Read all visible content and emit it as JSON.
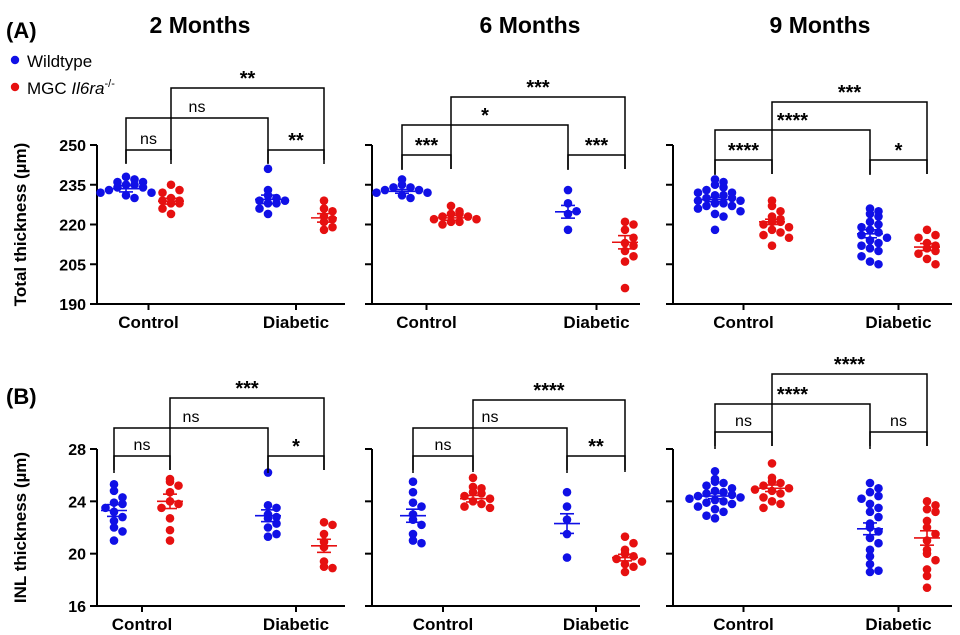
{
  "panel_labels": [
    "(A)",
    "(B)"
  ],
  "legend": [
    {
      "label": "Wildtype",
      "color": "#1010e6"
    },
    {
      "label": "MGC ",
      "italic": "Il6ra",
      "sup": "-/-",
      "color": "#e61010"
    }
  ],
  "colors": {
    "wildtype": "#1010e6",
    "mgc": "#e61010",
    "axis": "#000000"
  },
  "chart_data": [
    {
      "type": "scatter",
      "title": "2 Months",
      "ylabel": "Total thickness (µm)",
      "ylim": [
        190,
        250
      ],
      "yticks": [
        "190",
        "205",
        "220",
        "235",
        "250"
      ],
      "categories": [
        "Control",
        "Diabetic"
      ],
      "series": [
        {
          "name": "Wildtype",
          "group": "Control",
          "mean": 233.5,
          "sem": 1.2,
          "values": [
            238,
            236,
            237,
            235,
            234,
            232,
            231,
            230,
            233,
            232,
            234,
            235,
            236
          ]
        },
        {
          "name": "MGC Il6ra-/-",
          "group": "Control",
          "mean": 228.8,
          "sem": 1.1,
          "values": [
            235,
            233,
            232,
            230,
            229,
            228,
            226,
            224,
            228,
            229
          ]
        },
        {
          "name": "Wildtype",
          "group": "Diabetic",
          "mean": 229.5,
          "sem": 1.6,
          "values": [
            241,
            233,
            231,
            229,
            228,
            226,
            224,
            229,
            228,
            230
          ]
        },
        {
          "name": "MGC Il6ra-/-",
          "group": "Diabetic",
          "mean": 222.5,
          "sem": 1.6,
          "values": [
            229,
            226,
            225,
            223,
            222,
            219,
            218,
            221
          ]
        }
      ],
      "comparisons": [
        {
          "from": 0,
          "to": 1,
          "label": "ns",
          "level": 1
        },
        {
          "from": 2,
          "to": 3,
          "label": "**",
          "level": 1
        },
        {
          "from": 0,
          "to": 2,
          "label": "ns",
          "level": 2
        },
        {
          "from": 1,
          "to": 3,
          "label": "**",
          "level": 3
        }
      ]
    },
    {
      "type": "scatter",
      "title": "6 Months",
      "ylabel": "",
      "ylim": [
        190,
        250
      ],
      "yticks": [],
      "categories": [
        "Control",
        "Diabetic"
      ],
      "series": [
        {
          "name": "Wildtype",
          "group": "Control",
          "mean": 232.5,
          "sem": 0.7,
          "values": [
            237,
            235,
            234,
            233,
            232,
            231,
            230,
            232,
            233,
            234
          ]
        },
        {
          "name": "MGC Il6ra-/-",
          "group": "Control",
          "mean": 222.5,
          "sem": 0.9,
          "values": [
            227,
            225,
            224,
            223,
            222,
            221,
            220,
            222,
            223,
            221,
            224
          ]
        },
        {
          "name": "Wildtype",
          "group": "Diabetic",
          "mean": 224.8,
          "sem": 2.4,
          "values": [
            233,
            228,
            225,
            224,
            218
          ]
        },
        {
          "name": "MGC Il6ra-/-",
          "group": "Diabetic",
          "mean": 213.3,
          "sem": 2.5,
          "values": [
            221,
            220,
            218,
            215,
            213,
            212,
            210,
            208,
            206,
            196
          ]
        }
      ],
      "comparisons": [
        {
          "from": 0,
          "to": 1,
          "label": "***",
          "level": 1
        },
        {
          "from": 2,
          "to": 3,
          "label": "***",
          "level": 1
        },
        {
          "from": 0,
          "to": 2,
          "label": "*",
          "level": 2
        },
        {
          "from": 1,
          "to": 3,
          "label": "***",
          "level": 3
        }
      ]
    },
    {
      "type": "scatter",
      "title": "9 Months",
      "ylabel": "",
      "ylim": [
        190,
        250
      ],
      "yticks": [],
      "categories": [
        "Control",
        "Diabetic"
      ],
      "series": [
        {
          "name": "Wildtype",
          "group": "Control",
          "mean": 229.4,
          "sem": 0.8,
          "values": [
            237,
            236,
            235,
            234,
            233,
            232,
            232,
            231,
            231,
            230,
            230,
            229,
            229,
            228,
            228,
            227,
            227,
            226,
            225,
            224,
            223,
            218
          ]
        },
        {
          "name": "MGC Il6ra-/-",
          "group": "Control",
          "mean": 221.0,
          "sem": 1.0,
          "values": [
            229,
            227,
            225,
            223,
            222,
            221,
            221,
            220,
            219,
            218,
            217,
            216,
            215,
            212
          ]
        },
        {
          "name": "Wildtype",
          "group": "Diabetic",
          "mean": 216.5,
          "sem": 1.5,
          "values": [
            226,
            225,
            224,
            223,
            221,
            220,
            219,
            218,
            217,
            216,
            215,
            214,
            213,
            212,
            211,
            210,
            208,
            206,
            205
          ]
        },
        {
          "name": "MGC Il6ra-/-",
          "group": "Diabetic",
          "mean": 211.5,
          "sem": 1.3,
          "values": [
            218,
            216,
            215,
            213,
            212,
            211,
            210,
            209,
            207,
            205
          ]
        }
      ],
      "comparisons": [
        {
          "from": 0,
          "to": 1,
          "label": "****",
          "level": 1
        },
        {
          "from": 2,
          "to": 3,
          "label": "*",
          "level": 1
        },
        {
          "from": 0,
          "to": 2,
          "label": "****",
          "level": 2
        },
        {
          "from": 1,
          "to": 3,
          "label": "***",
          "level": 3
        }
      ]
    },
    {
      "type": "scatter",
      "title": "",
      "ylabel": "INL thickness (µm)",
      "ylim": [
        16,
        28
      ],
      "yticks": [
        "16",
        "20",
        "24",
        "28"
      ],
      "categories": [
        "Control",
        "Diabetic"
      ],
      "series": [
        {
          "name": "Wildtype",
          "group": "Control",
          "mean": 23.3,
          "sem": 0.45,
          "values": [
            25.3,
            24.8,
            24.3,
            23.8,
            23.5,
            23.2,
            22.8,
            22.5,
            22.0,
            21.7,
            21.0,
            23.9
          ]
        },
        {
          "name": "MGC Il6ra-/-",
          "group": "Control",
          "mean": 24.0,
          "sem": 0.55,
          "values": [
            25.7,
            25.2,
            24.7,
            24.0,
            23.8,
            23.5,
            22.7,
            21.8,
            21.0,
            25.5
          ]
        },
        {
          "name": "Wildtype",
          "group": "Diabetic",
          "mean": 22.9,
          "sem": 0.45,
          "values": [
            26.2,
            23.7,
            23.5,
            23.0,
            22.7,
            22.3,
            22.0,
            21.5,
            21.3,
            22.8
          ]
        },
        {
          "name": "MGC Il6ra-/-",
          "group": "Diabetic",
          "mean": 20.6,
          "sem": 0.5,
          "values": [
            22.4,
            22.2,
            21.5,
            20.9,
            20.5,
            19.4,
            19.0,
            18.9
          ]
        }
      ],
      "comparisons": [
        {
          "from": 0,
          "to": 1,
          "label": "ns",
          "level": 1
        },
        {
          "from": 2,
          "to": 3,
          "label": "*",
          "level": 1
        },
        {
          "from": 0,
          "to": 2,
          "label": "ns",
          "level": 2
        },
        {
          "from": 1,
          "to": 3,
          "label": "***",
          "level": 3
        }
      ]
    },
    {
      "type": "scatter",
      "title": "",
      "ylabel": "",
      "ylim": [
        16,
        28
      ],
      "yticks": [],
      "categories": [
        "Control",
        "Diabetic"
      ],
      "series": [
        {
          "name": "Wildtype",
          "group": "Control",
          "mean": 22.9,
          "sem": 0.5,
          "values": [
            25.5,
            24.7,
            23.6,
            23.0,
            22.6,
            22.2,
            21.5,
            21.0,
            20.8,
            23.9
          ]
        },
        {
          "name": "MGC Il6ra-/-",
          "group": "Control",
          "mean": 24.2,
          "sem": 0.25,
          "values": [
            25.8,
            25.1,
            24.7,
            24.4,
            24.2,
            24.0,
            23.8,
            23.5,
            23.6,
            24.6,
            25.0
          ]
        },
        {
          "name": "Wildtype",
          "group": "Diabetic",
          "mean": 22.3,
          "sem": 0.75,
          "values": [
            24.7,
            23.6,
            22.6,
            21.5,
            19.7
          ]
        },
        {
          "name": "MGC Il6ra-/-",
          "group": "Diabetic",
          "mean": 19.7,
          "sem": 0.25,
          "values": [
            21.3,
            20.8,
            20.3,
            20.0,
            19.8,
            19.6,
            19.4,
            19.0,
            18.6,
            19.2
          ]
        }
      ],
      "comparisons": [
        {
          "from": 0,
          "to": 1,
          "label": "ns",
          "level": 1
        },
        {
          "from": 2,
          "to": 3,
          "label": "**",
          "level": 1
        },
        {
          "from": 0,
          "to": 2,
          "label": "ns",
          "level": 2
        },
        {
          "from": 1,
          "to": 3,
          "label": "****",
          "level": 3
        }
      ]
    },
    {
      "type": "scatter",
      "title": "",
      "ylabel": "",
      "ylim": [
        16,
        28
      ],
      "yticks": [],
      "categories": [
        "Control",
        "Diabetic"
      ],
      "series": [
        {
          "name": "Wildtype",
          "group": "Control",
          "mean": 24.4,
          "sem": 0.2,
          "values": [
            26.3,
            25.7,
            25.4,
            25.2,
            25.0,
            24.8,
            24.6,
            24.5,
            24.4,
            24.3,
            24.2,
            24.1,
            24.0,
            23.9,
            23.8,
            23.6,
            23.4,
            23.2,
            22.9,
            22.7,
            24.7,
            25.5
          ]
        },
        {
          "name": "MGC Il6ra-/-",
          "group": "Control",
          "mean": 25.0,
          "sem": 0.25,
          "values": [
            26.9,
            25.8,
            25.5,
            25.2,
            25.0,
            24.8,
            24.6,
            24.3,
            24.0,
            23.8,
            23.5,
            25.4,
            24.9
          ]
        },
        {
          "name": "Wildtype",
          "group": "Diabetic",
          "mean": 21.9,
          "sem": 0.45,
          "values": [
            25.4,
            25.0,
            24.7,
            24.2,
            23.8,
            23.5,
            23.2,
            22.8,
            22.3,
            22.0,
            21.7,
            21.2,
            20.8,
            20.3,
            19.8,
            19.2,
            18.7,
            18.6,
            24.4
          ]
        },
        {
          "name": "MGC Il6ra-/-",
          "group": "Diabetic",
          "mean": 21.2,
          "sem": 0.55,
          "values": [
            24.0,
            23.7,
            23.4,
            23.2,
            22.5,
            22.0,
            21.5,
            21.0,
            20.3,
            20.0,
            19.5,
            18.8,
            18.3,
            17.4
          ]
        }
      ],
      "comparisons": [
        {
          "from": 0,
          "to": 1,
          "label": "ns",
          "level": 1
        },
        {
          "from": 2,
          "to": 3,
          "label": "ns",
          "level": 1
        },
        {
          "from": 0,
          "to": 2,
          "label": "****",
          "level": 2
        },
        {
          "from": 1,
          "to": 3,
          "label": "****",
          "level": 3
        }
      ]
    }
  ]
}
